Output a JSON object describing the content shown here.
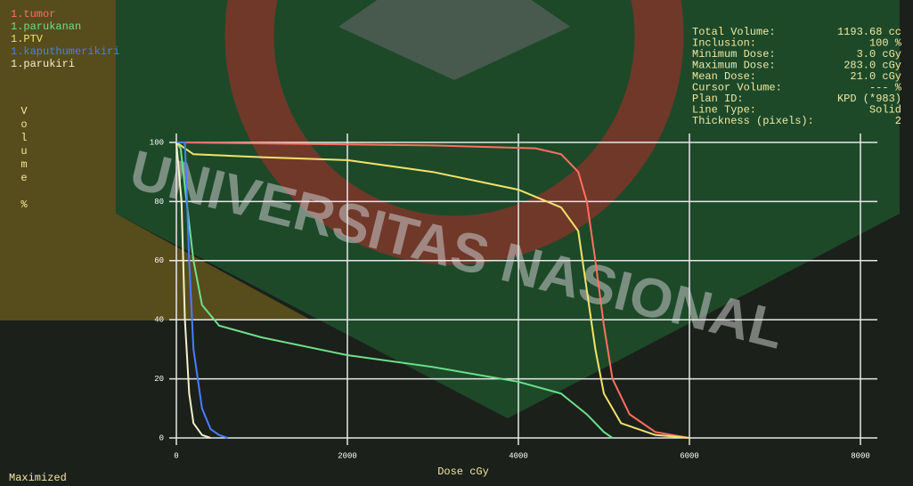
{
  "chart_data": {
    "type": "line",
    "x_label": "Dose cGy",
    "y_label": "Volume %",
    "status": "Maximized",
    "watermark": "UNIVERSITAS NASIONAL",
    "xlim": [
      0,
      8000
    ],
    "xticks": [
      0,
      2000,
      4000,
      6000,
      8000
    ],
    "ylim": [
      0,
      100
    ],
    "yticks": [
      0,
      20,
      40,
      60,
      80,
      100
    ],
    "grid": true,
    "series": [
      {
        "name": "1.tumor",
        "color": "#ff6f61",
        "x": [
          0,
          3000,
          4200,
          4500,
          4700,
          4800,
          4900,
          5000,
          5100,
          5300,
          5600,
          6000
        ],
        "values": [
          100,
          99,
          98,
          96,
          90,
          80,
          60,
          38,
          20,
          8,
          2,
          0
        ]
      },
      {
        "name": "1.parukanan",
        "color": "#6ee08a",
        "x": [
          0,
          50,
          100,
          200,
          300,
          500,
          1000,
          2000,
          3000,
          4000,
          4500,
          4800,
          5000,
          5100
        ],
        "values": [
          100,
          98,
          85,
          60,
          45,
          38,
          34,
          28,
          24,
          19,
          15,
          8,
          2,
          0
        ]
      },
      {
        "name": "1.PTV",
        "color": "#f2e36b",
        "x": [
          0,
          200,
          1000,
          2000,
          3000,
          4000,
          4500,
          4700,
          4800,
          4900,
          5000,
          5200,
          5600,
          6000
        ],
        "values": [
          100,
          96,
          95,
          94,
          90,
          84,
          78,
          70,
          50,
          30,
          15,
          5,
          1,
          0
        ]
      },
      {
        "name": "1.kaputhumerikiri",
        "color": "#4a7dff",
        "x": [
          0,
          100,
          150,
          200,
          300,
          400,
          500,
          600
        ],
        "values": [
          100,
          100,
          60,
          30,
          10,
          3,
          1,
          0
        ]
      },
      {
        "name": "1.parukiri",
        "color": "#f5f0c8",
        "x": [
          0,
          60,
          100,
          150,
          200,
          300,
          400
        ],
        "values": [
          100,
          80,
          40,
          15,
          5,
          1,
          0
        ]
      }
    ]
  },
  "panel": [
    {
      "label": "Total Volume:",
      "value": "1193.68 cc"
    },
    {
      "label": "Inclusion:",
      "value": "100 %"
    },
    {
      "label": "Minimum Dose:",
      "value": "3.0 cGy"
    },
    {
      "label": "Maximum Dose:",
      "value": "283.0 cGy"
    },
    {
      "label": "Mean Dose:",
      "value": "21.0 cGy"
    },
    {
      "label": "Cursor Volume:",
      "value": "--- %"
    },
    {
      "label": "Plan ID:",
      "value": "KPD (*983)"
    },
    {
      "label": "Line Type:",
      "value": "Solid"
    },
    {
      "label": "Thickness (pixels):",
      "value": "2"
    }
  ]
}
